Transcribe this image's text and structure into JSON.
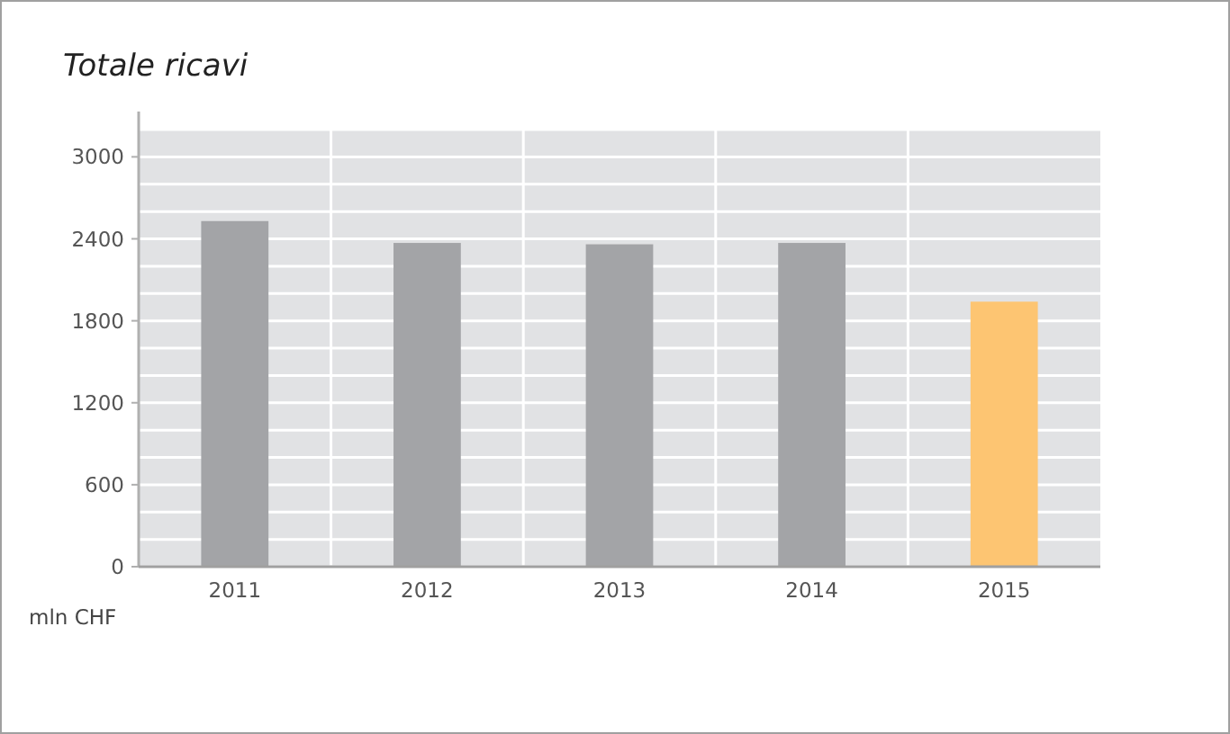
{
  "chart_data": {
    "type": "bar",
    "title": "Totale ricavi",
    "ylabel": "mln CHF",
    "categories": [
      "2011",
      "2012",
      "2013",
      "2014",
      "2015"
    ],
    "values": [
      2530,
      2370,
      2360,
      2370,
      1940
    ],
    "colors": [
      "#a3a4a7",
      "#a3a4a7",
      "#a3a4a7",
      "#a3a4a7",
      "#fdc572"
    ],
    "ylim": [
      0,
      3200
    ],
    "yticks": [
      0,
      {
        "value": 200,
        "label": null
      },
      {
        "value": 400,
        "label": null
      },
      600,
      {
        "value": 800,
        "label": null
      },
      {
        "value": 1000,
        "label": null
      },
      1200,
      {
        "value": 1400,
        "label": null
      },
      {
        "value": 1600,
        "label": null
      },
      1800,
      {
        "value": 2000,
        "label": null
      },
      {
        "value": 2200,
        "label": null
      },
      2400,
      {
        "value": 2600,
        "label": null
      },
      {
        "value": 2800,
        "label": null
      },
      3000,
      {
        "value": 3200,
        "label": null
      }
    ],
    "grid": true
  }
}
